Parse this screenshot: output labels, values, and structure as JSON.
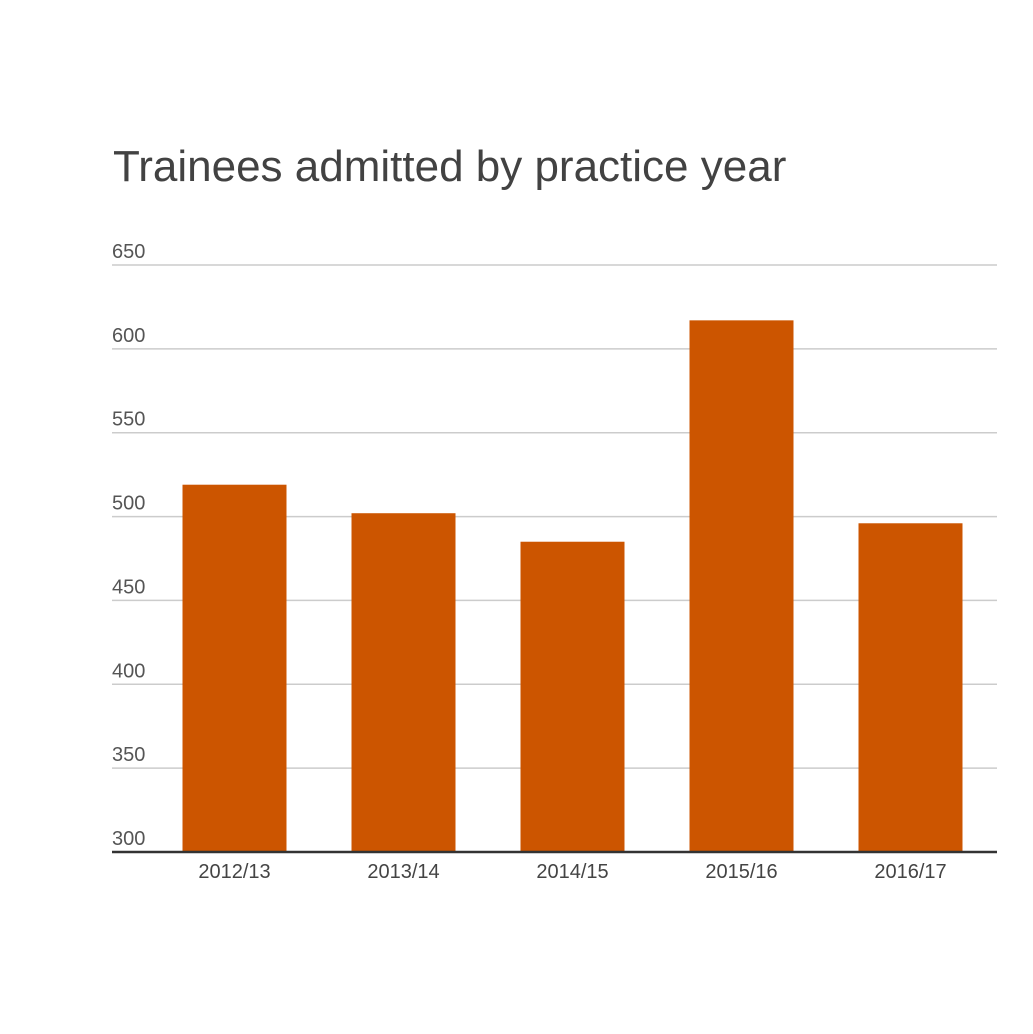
{
  "chart_data": {
    "type": "bar",
    "title": "Trainees admitted by practice year",
    "xlabel": "",
    "ylabel": "",
    "categories": [
      "2012/13",
      "2013/14",
      "2014/15",
      "2015/16",
      "2016/17"
    ],
    "values": [
      519,
      502,
      485,
      617,
      496
    ],
    "ylim": [
      300,
      650
    ],
    "yticks": [
      300,
      350,
      400,
      450,
      500,
      550,
      600,
      650
    ],
    "grid": true,
    "legend": "none",
    "colors": {
      "bar": "#cc5500",
      "grid": "#cccccc",
      "axis": "#333333"
    }
  }
}
